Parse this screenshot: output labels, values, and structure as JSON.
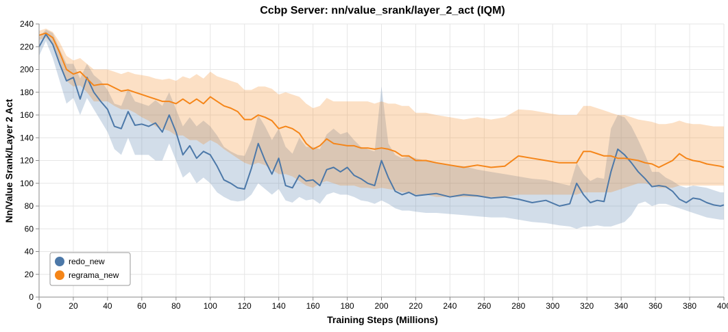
{
  "chart_data": {
    "type": "line",
    "title": "Ccbp Server: nn/value_srank/layer_2_act (IQM)",
    "xlabel": "Training Steps (Millions)",
    "ylabel": "Nn/Value Srank/Layer 2 Act",
    "xlim": [
      0,
      400
    ],
    "ylim": [
      0,
      240
    ],
    "xticks": [
      0,
      20,
      40,
      60,
      80,
      100,
      120,
      140,
      160,
      180,
      200,
      220,
      240,
      260,
      280,
      300,
      320,
      340,
      360,
      380,
      400
    ],
    "yticks": [
      0,
      20,
      40,
      60,
      80,
      100,
      120,
      140,
      160,
      180,
      200,
      220,
      240
    ],
    "grid": true,
    "legend_position": "bottom-left",
    "series": [
      {
        "name": "redo_new",
        "color": "#4c78a8",
        "x": [
          0,
          4,
          8,
          12,
          16,
          20,
          24,
          28,
          32,
          36,
          40,
          44,
          48,
          52,
          56,
          60,
          64,
          68,
          72,
          76,
          80,
          84,
          88,
          92,
          96,
          100,
          104,
          108,
          112,
          116,
          120,
          124,
          128,
          132,
          136,
          140,
          144,
          148,
          152,
          156,
          160,
          164,
          168,
          172,
          176,
          180,
          184,
          188,
          192,
          196,
          200,
          204,
          208,
          212,
          216,
          220,
          226,
          232,
          240,
          248,
          256,
          264,
          272,
          280,
          288,
          296,
          304,
          310,
          314,
          318,
          322,
          326,
          330,
          334,
          338,
          342,
          346,
          350,
          354,
          358,
          362,
          366,
          370,
          374,
          378,
          382,
          386,
          390,
          394,
          398,
          400
        ],
        "y": [
          220,
          231,
          222,
          205,
          190,
          193,
          174,
          193,
          180,
          172,
          165,
          150,
          148,
          163,
          151,
          152,
          150,
          153,
          145,
          160,
          145,
          125,
          133,
          122,
          128,
          125,
          115,
          103,
          100,
          96,
          95,
          113,
          135,
          120,
          108,
          122,
          98,
          96,
          107,
          102,
          103,
          98,
          112,
          114,
          110,
          114,
          107,
          104,
          100,
          98,
          120,
          105,
          93,
          90,
          92,
          89,
          90,
          91,
          88,
          90,
          89,
          87,
          88,
          86,
          83,
          85,
          80,
          82,
          100,
          90,
          83,
          85,
          84,
          110,
          130,
          125,
          118,
          110,
          104,
          97,
          98,
          97,
          93,
          86,
          83,
          87,
          86,
          83,
          81,
          80,
          81
        ],
        "lower": [
          212,
          225,
          210,
          190,
          170,
          175,
          160,
          175,
          165,
          155,
          145,
          130,
          125,
          140,
          125,
          125,
          125,
          120,
          120,
          135,
          120,
          105,
          110,
          100,
          105,
          100,
          92,
          88,
          85,
          84,
          85,
          90,
          100,
          95,
          90,
          95,
          85,
          83,
          88,
          85,
          86,
          82,
          90,
          92,
          90,
          90,
          88,
          85,
          84,
          82,
          85,
          82,
          78,
          76,
          76,
          75,
          74,
          74,
          73,
          72,
          71,
          70,
          70,
          68,
          66,
          65,
          63,
          62,
          60,
          62,
          62,
          63,
          62,
          62,
          64,
          66,
          72,
          82,
          84,
          80,
          82,
          82,
          80,
          78,
          76,
          74,
          72,
          70,
          69,
          68,
          68
        ],
        "upper": [
          228,
          235,
          232,
          218,
          205,
          205,
          192,
          205,
          195,
          190,
          182,
          170,
          168,
          183,
          172,
          170,
          168,
          173,
          168,
          180,
          165,
          150,
          158,
          150,
          155,
          150,
          142,
          132,
          128,
          125,
          124,
          138,
          160,
          150,
          138,
          148,
          132,
          126,
          140,
          132,
          132,
          130,
          143,
          148,
          143,
          145,
          138,
          132,
          130,
          128,
          185,
          135,
          125,
          122,
          124,
          122,
          120,
          118,
          116,
          115,
          112,
          110,
          108,
          106,
          104,
          103,
          100,
          98,
          118,
          108,
          102,
          105,
          104,
          148,
          160,
          158,
          150,
          138,
          125,
          110,
          110,
          105,
          102,
          98,
          96,
          98,
          97,
          96,
          94,
          92,
          92
        ]
      },
      {
        "name": "regrama_new",
        "color": "#f58518",
        "x": [
          0,
          4,
          8,
          12,
          16,
          20,
          24,
          28,
          32,
          36,
          40,
          44,
          48,
          52,
          56,
          60,
          64,
          68,
          72,
          76,
          80,
          84,
          88,
          92,
          96,
          100,
          104,
          108,
          112,
          116,
          120,
          124,
          128,
          132,
          136,
          140,
          144,
          148,
          152,
          156,
          160,
          164,
          168,
          172,
          176,
          180,
          184,
          188,
          192,
          196,
          200,
          204,
          208,
          212,
          216,
          220,
          226,
          232,
          240,
          248,
          256,
          264,
          272,
          280,
          288,
          296,
          304,
          310,
          314,
          318,
          322,
          326,
          330,
          334,
          338,
          342,
          346,
          350,
          354,
          358,
          362,
          366,
          370,
          374,
          378,
          382,
          386,
          390,
          394,
          398,
          400
        ],
        "y": [
          230,
          232,
          228,
          215,
          200,
          196,
          198,
          192,
          186,
          187,
          187,
          184,
          181,
          182,
          180,
          178,
          176,
          174,
          172,
          172,
          170,
          174,
          170,
          174,
          170,
          176,
          172,
          168,
          166,
          163,
          156,
          156,
          160,
          158,
          155,
          148,
          150,
          148,
          144,
          135,
          130,
          133,
          139,
          135,
          134,
          133,
          133,
          131,
          131,
          130,
          131,
          130,
          128,
          124,
          124,
          120,
          120,
          118,
          116,
          114,
          116,
          114,
          115,
          124,
          122,
          120,
          118,
          118,
          118,
          128,
          128,
          126,
          124,
          124,
          122,
          122,
          121,
          120,
          118,
          117,
          114,
          117,
          120,
          126,
          122,
          120,
          119,
          117,
          116,
          115,
          114
        ],
        "lower": [
          226,
          228,
          222,
          205,
          190,
          185,
          186,
          180,
          172,
          172,
          172,
          168,
          165,
          165,
          162,
          158,
          155,
          150,
          148,
          146,
          142,
          142,
          138,
          138,
          134,
          138,
          135,
          130,
          126,
          122,
          118,
          116,
          118,
          116,
          112,
          108,
          108,
          106,
          102,
          98,
          96,
          100,
          102,
          100,
          98,
          98,
          98,
          96,
          96,
          95,
          96,
          95,
          94,
          92,
          92,
          90,
          90,
          88,
          88,
          88,
          88,
          88,
          88,
          90,
          90,
          90,
          90,
          90,
          90,
          92,
          92,
          92,
          92,
          92,
          94,
          96,
          98,
          100,
          100,
          98,
          96,
          96,
          96,
          98,
          98,
          98,
          98,
          98,
          98,
          98,
          98
        ],
        "upper": [
          234,
          236,
          233,
          224,
          212,
          208,
          210,
          205,
          200,
          200,
          200,
          198,
          196,
          198,
          196,
          195,
          194,
          192,
          191,
          192,
          190,
          194,
          192,
          196,
          192,
          198,
          194,
          192,
          190,
          188,
          182,
          182,
          185,
          185,
          183,
          178,
          180,
          178,
          176,
          170,
          166,
          168,
          175,
          172,
          172,
          172,
          172,
          172,
          172,
          170,
          172,
          170,
          170,
          168,
          168,
          162,
          162,
          160,
          158,
          156,
          158,
          156,
          158,
          165,
          164,
          162,
          160,
          160,
          160,
          168,
          168,
          166,
          164,
          162,
          160,
          160,
          158,
          156,
          155,
          154,
          152,
          152,
          153,
          155,
          153,
          152,
          152,
          151,
          150,
          150,
          150
        ]
      }
    ]
  }
}
